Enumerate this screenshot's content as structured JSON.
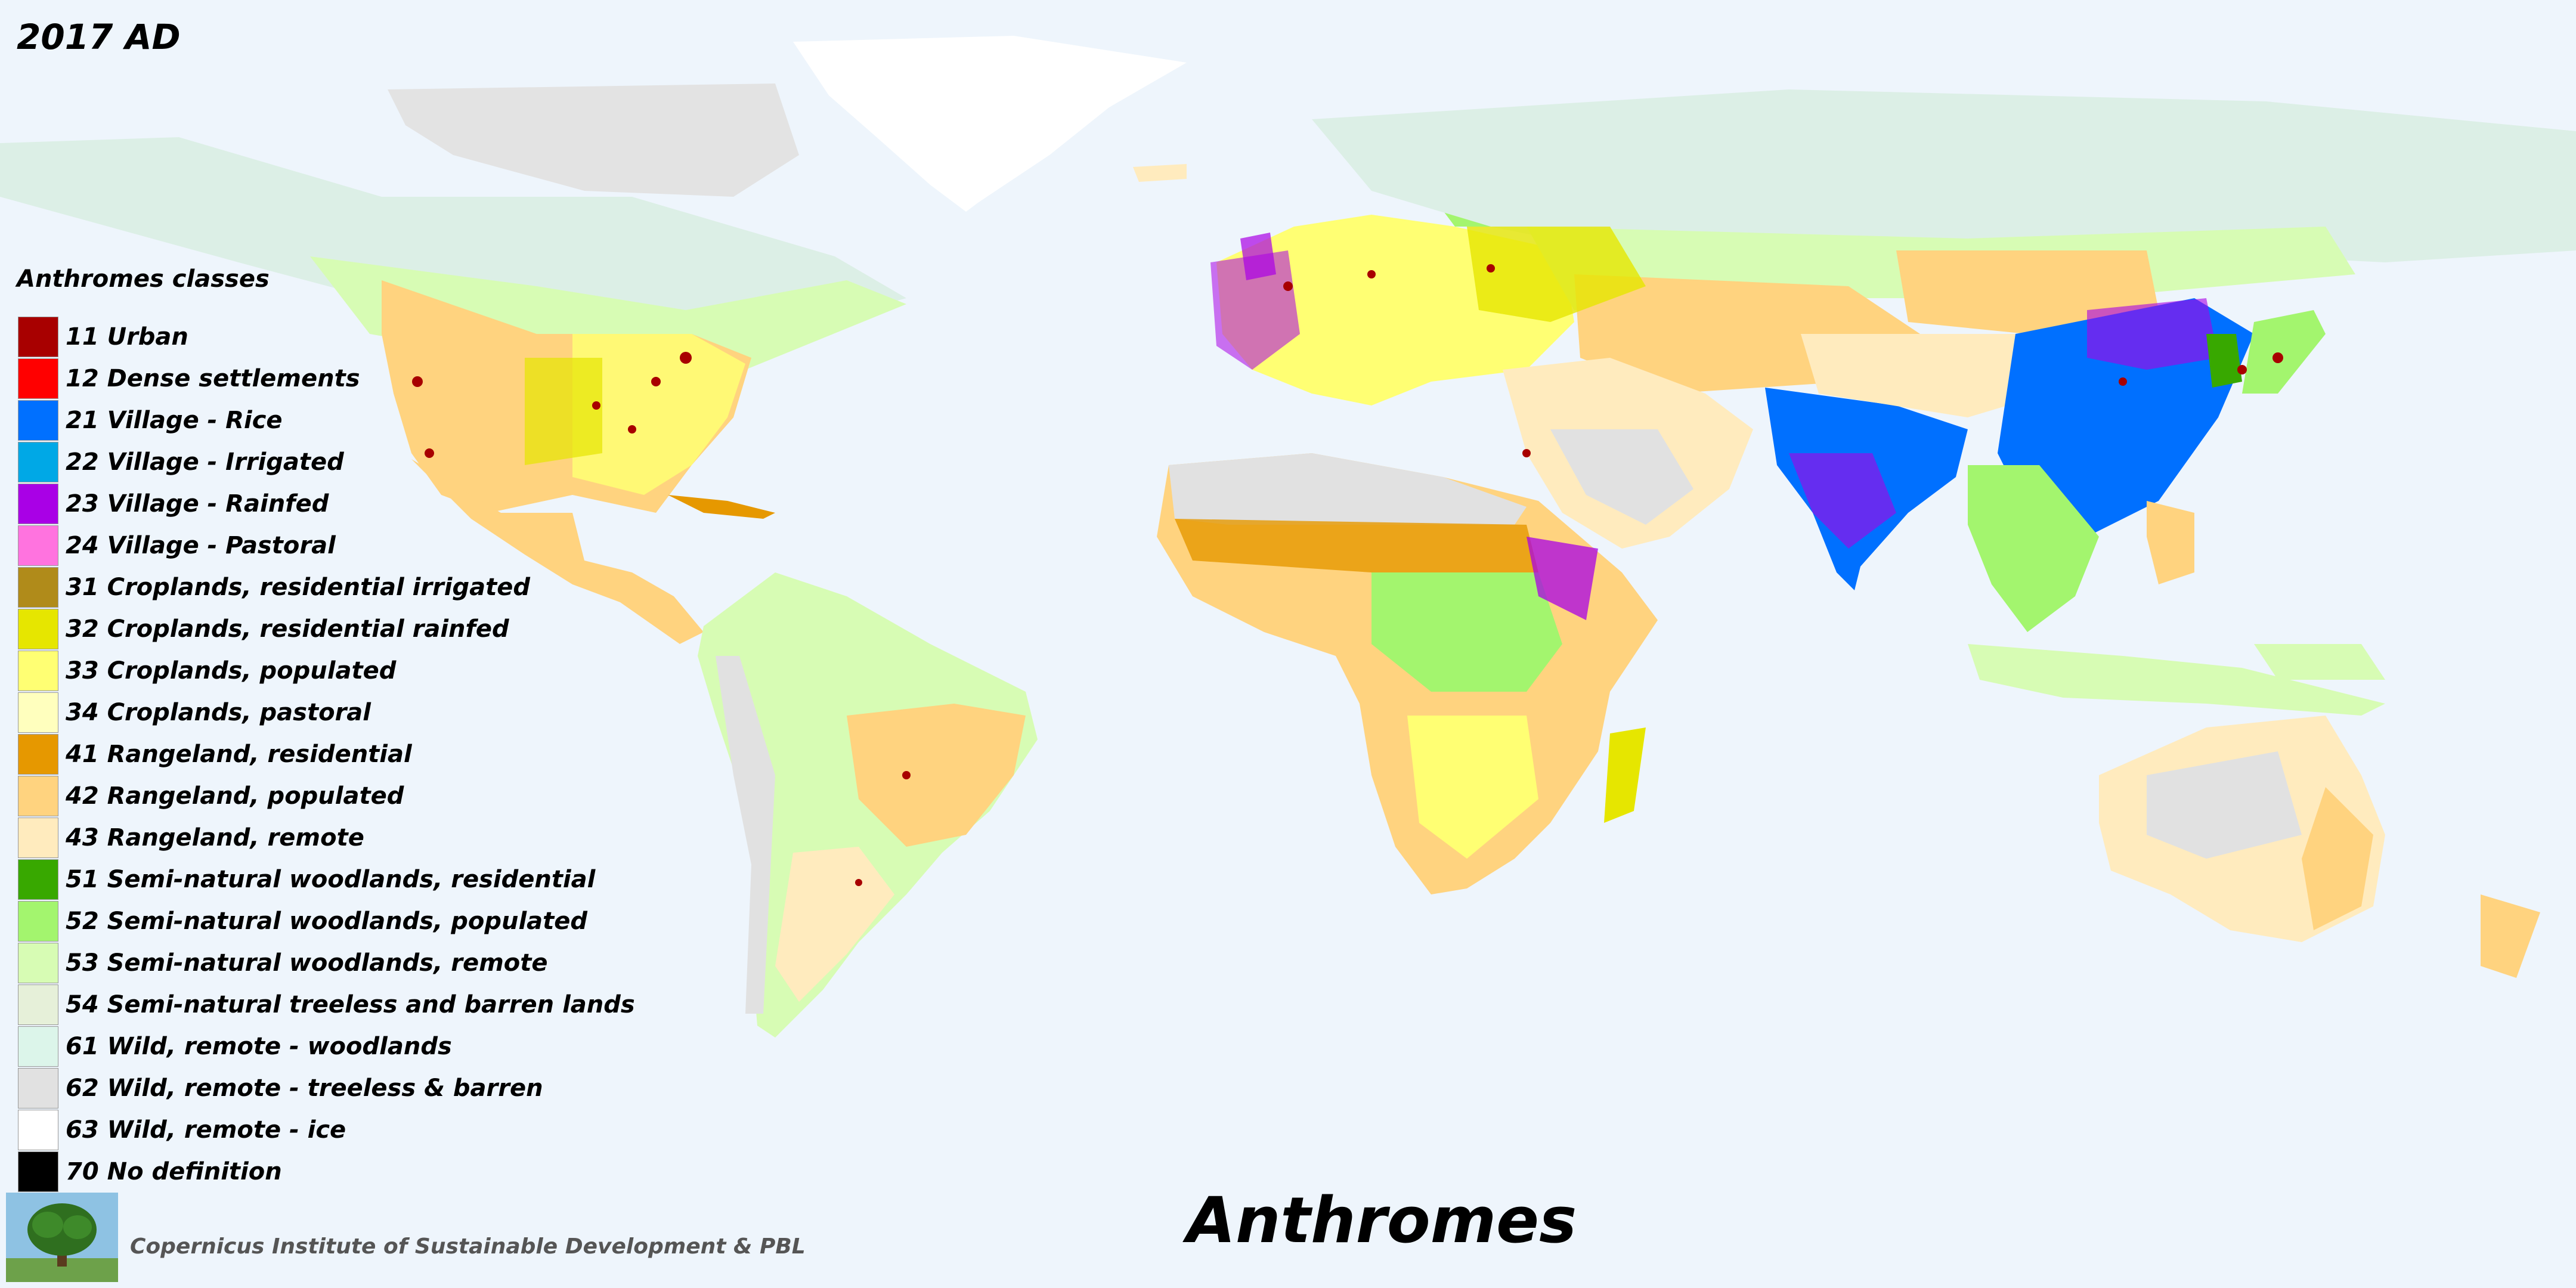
{
  "title": "Anthromes",
  "year_label": "2017 AD",
  "legend": {
    "title": "Anthromes classes",
    "items": [
      {
        "label": "11 Urban",
        "color": "#a80000"
      },
      {
        "label": "12 Dense settlements",
        "color": "#ff0000"
      },
      {
        "label": "21 Village - Rice",
        "color": "#0070ff"
      },
      {
        "label": "22 Village - Irrigated",
        "color": "#00a8e6"
      },
      {
        "label": "23 Village - Rainfed",
        "color": "#a900e6"
      },
      {
        "label": "24 Village - Pastoral",
        "color": "#ff73df"
      },
      {
        "label": "31 Croplands, residential irrigated",
        "color": "#b08b1a"
      },
      {
        "label": "32 Croplands, residential rainfed",
        "color": "#e6e600"
      },
      {
        "label": "33 Croplands, populated",
        "color": "#ffff73"
      },
      {
        "label": "34 Croplands, pastoral",
        "color": "#ffffbe"
      },
      {
        "label": "41 Rangeland, residential",
        "color": "#e69800"
      },
      {
        "label": "42 Rangeland, populated",
        "color": "#ffd37f"
      },
      {
        "label": "43 Rangeland, remote",
        "color": "#ffebbe"
      },
      {
        "label": "51 Semi-natural woodlands, residential",
        "color": "#38a800"
      },
      {
        "label": "52 Semi-natural woodlands, populated",
        "color": "#a3f56e"
      },
      {
        "label": "53 Semi-natural woodlands, remote",
        "color": "#d7fcb4"
      },
      {
        "label": "54 Semi-natural treeless and barren lands",
        "color": "#e6f0d9"
      },
      {
        "label": "61 Wild, remote - woodlands",
        "color": "#dcf5ea"
      },
      {
        "label": "62 Wild, remote - treeless & barren",
        "color": "#e1e1e1"
      },
      {
        "label": "63 Wild, remote - ice",
        "color": "#ffffff"
      },
      {
        "label": "70 No definition",
        "color": "#000000"
      }
    ]
  },
  "credit": "Copernicus Institute of Sustainable Development & PBL",
  "logo": "tree-logo"
}
